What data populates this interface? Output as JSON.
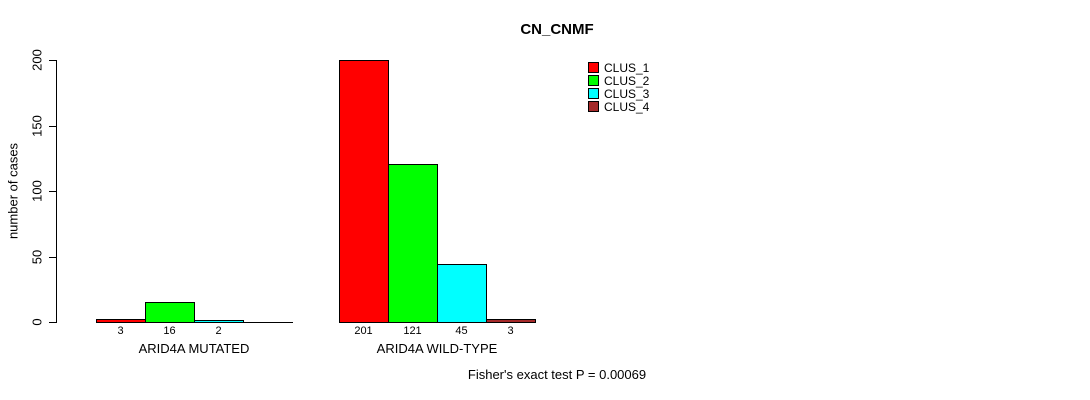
{
  "chart_data": {
    "type": "bar",
    "title": "CN_CNMF",
    "ylabel": "number of cases",
    "xlabel": "",
    "ylim": [
      0,
      200
    ],
    "yticks": [
      0,
      50,
      100,
      150,
      200
    ],
    "categories": [
      "ARID4A MUTATED",
      "ARID4A WILD-TYPE"
    ],
    "series": [
      {
        "name": "CLUS_1",
        "color": "#ff0000",
        "values": [
          3,
          201
        ]
      },
      {
        "name": "CLUS_2",
        "color": "#00ff00",
        "values": [
          16,
          121
        ]
      },
      {
        "name": "CLUS_3",
        "color": "#00ffff",
        "values": [
          2,
          45
        ]
      },
      {
        "name": "CLUS_4",
        "color": "#a52a2a",
        "values": [
          0,
          3
        ]
      }
    ],
    "bar_value_labels": [
      [
        "3",
        "16",
        "2",
        ""
      ],
      [
        "201",
        "121",
        "45",
        "3"
      ]
    ],
    "legend_position": "top-right",
    "grid": false,
    "annotation": "Fisher's exact test P = 0.00069"
  }
}
